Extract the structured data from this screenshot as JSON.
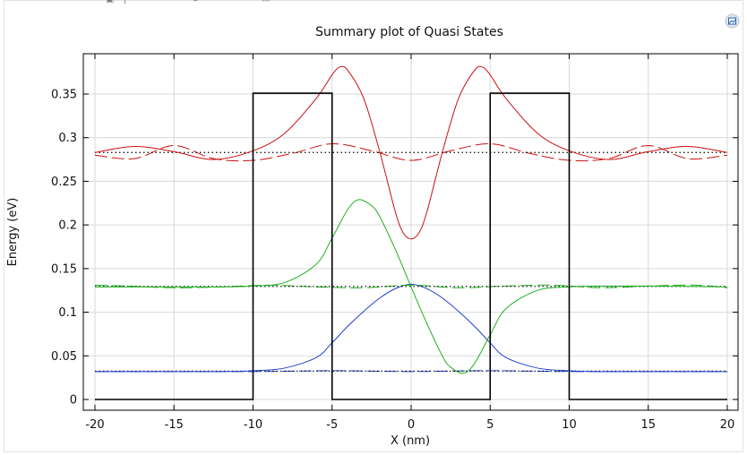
{
  "toolbar": {
    "icons": [
      "square-icon",
      "separator-icon",
      "grid-icon",
      "grid-icon",
      "refresh-icon",
      "document-icon"
    ]
  },
  "plot_icon": "plot-image-icon",
  "chart_data": {
    "type": "line",
    "title": "Summary plot of Quasi States",
    "xlabel": "X (nm)",
    "ylabel": "Energy (eV)",
    "xlim": [
      -20,
      20
    ],
    "ylim": [
      -0.012,
      0.392
    ],
    "xticks": [
      -20,
      -15,
      -10,
      -5,
      0,
      5,
      10,
      15,
      20
    ],
    "xtick_labels": [
      "-20",
      "-15",
      "-10",
      "-5",
      "0",
      "5",
      "10",
      "15",
      "20"
    ],
    "yticks": [
      0,
      0.05,
      0.1,
      0.15,
      0.2,
      0.25,
      0.3,
      0.35
    ],
    "ytick_labels": [
      "0",
      "0.05",
      "0.1",
      "0.15",
      "0.2",
      "0.25",
      "0.3",
      "0.35"
    ],
    "grid": true,
    "legend": "none",
    "colors": {
      "potential": "#000000",
      "state1": "#1f3fcf",
      "state2": "#20b020",
      "state3": "#cc1010",
      "level": "#000000"
    },
    "potential": {
      "x": [
        -20,
        -10,
        -10,
        -5,
        -5,
        5,
        5,
        10,
        10,
        20
      ],
      "y": [
        0,
        0,
        0.351,
        0.351,
        0,
        0,
        0.351,
        0.351,
        0,
        0
      ]
    },
    "states": [
      {
        "energy": 0.0325,
        "solid": {
          "x": [
            -20,
            -12,
            -10,
            -8,
            -6,
            -5,
            -4,
            -3,
            -2,
            -1,
            0,
            1,
            2,
            3,
            4,
            5,
            6,
            8,
            10,
            12,
            20
          ],
          "y": [
            0.032,
            0.032,
            0.033,
            0.036,
            0.048,
            0.065,
            0.084,
            0.101,
            0.116,
            0.127,
            0.132,
            0.127,
            0.116,
            0.101,
            0.084,
            0.065,
            0.048,
            0.036,
            0.033,
            0.032,
            0.032
          ]
        },
        "dashed": {
          "x": [
            -20,
            -10,
            -5,
            0,
            5,
            10,
            20
          ],
          "y": [
            0.032,
            0.032,
            0.033,
            0.032,
            0.033,
            0.032,
            0.032
          ]
        }
      },
      {
        "energy": 0.1295,
        "solid": {
          "x": [
            -20,
            -15,
            -12,
            -10,
            -8,
            -6,
            -5,
            -4,
            -3.3,
            -2.5,
            -2,
            -1,
            0,
            1,
            2,
            2.5,
            3.3,
            4,
            5,
            6,
            8,
            10,
            12,
            15,
            20
          ],
          "y": [
            0.129,
            0.129,
            0.129,
            0.13,
            0.134,
            0.155,
            0.185,
            0.218,
            0.229,
            0.222,
            0.21,
            0.172,
            0.129,
            0.087,
            0.049,
            0.037,
            0.03,
            0.041,
            0.074,
            0.104,
            0.125,
            0.129,
            0.13,
            0.13,
            0.129
          ]
        },
        "dashed": {
          "x": [
            -20,
            -18,
            -15,
            -12,
            -9,
            -6,
            -3,
            0,
            3,
            6,
            9,
            12,
            15,
            18,
            20
          ],
          "y": [
            0.131,
            0.13,
            0.128,
            0.129,
            0.131,
            0.129,
            0.128,
            0.131,
            0.128,
            0.13,
            0.131,
            0.128,
            0.13,
            0.131,
            0.128
          ]
        }
      },
      {
        "energy": 0.283,
        "solid": {
          "x": [
            -20,
            -17.5,
            -15,
            -12.5,
            -10,
            -8,
            -6,
            -5,
            -4.5,
            -4,
            -3,
            -2,
            -1,
            -0.5,
            0,
            0.5,
            1,
            2,
            3,
            4,
            4.5,
            5,
            6,
            8,
            10,
            12.5,
            15,
            17.5,
            20
          ],
          "y": [
            0.283,
            0.29,
            0.284,
            0.275,
            0.285,
            0.305,
            0.345,
            0.372,
            0.381,
            0.377,
            0.345,
            0.285,
            0.215,
            0.191,
            0.184,
            0.191,
            0.215,
            0.285,
            0.345,
            0.377,
            0.381,
            0.372,
            0.345,
            0.305,
            0.285,
            0.275,
            0.284,
            0.29,
            0.283
          ]
        },
        "dashed": {
          "x": [
            -20,
            -17.5,
            -15,
            -12.5,
            -10,
            -7.5,
            -5,
            -2.5,
            0,
            2.5,
            5,
            7.5,
            10,
            12.5,
            15,
            17.5,
            20
          ],
          "y": [
            0.28,
            0.276,
            0.291,
            0.276,
            0.274,
            0.282,
            0.293,
            0.285,
            0.274,
            0.285,
            0.293,
            0.282,
            0.274,
            0.276,
            0.291,
            0.276,
            0.28
          ]
        }
      }
    ]
  }
}
